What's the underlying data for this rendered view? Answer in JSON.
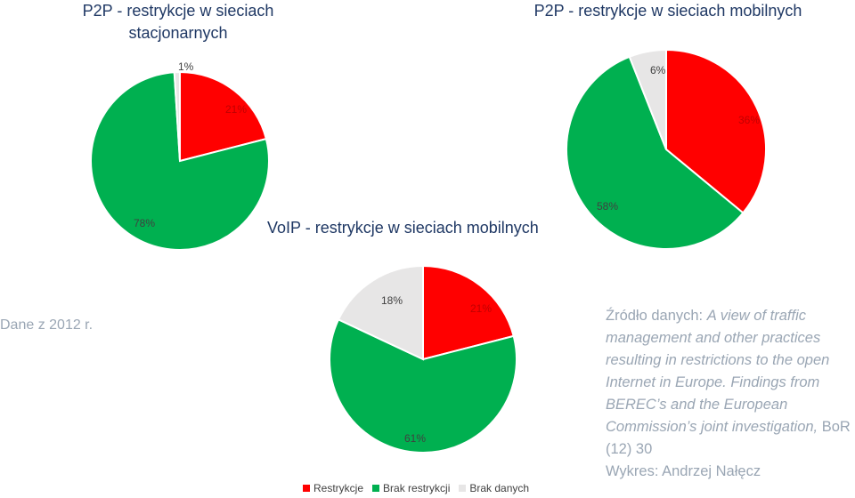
{
  "colors": {
    "restrykcje": "#ff0000",
    "brak_restrykcji": "#00b050",
    "brak_danych": "#e7e6e6"
  },
  "note": "Dane z 2012 r.",
  "source": {
    "prefix": "Źródło danych: ",
    "italic": "A view of traffic management and other practices resulting in restrictions to the open Internet in Europe. Findings from BEREC’s and the European Commission’s joint investigation,",
    "suffix": " BoR (12) 30",
    "author": "Wykres: Andrzej Nałęcz"
  },
  "chart_data": [
    {
      "type": "pie",
      "title": "P2P - restrykcje w sieciach stacjonarnych",
      "categories": [
        "Restrykcje",
        "Brak restrykcji",
        "Brak danych"
      ],
      "values": [
        21,
        78,
        1
      ],
      "labels": [
        "21%",
        "78%",
        "1%"
      ]
    },
    {
      "type": "pie",
      "title": "P2P - restrykcje w sieciach mobilnych",
      "categories": [
        "Restrykcje",
        "Brak restrykcji",
        "Brak danych"
      ],
      "values": [
        36,
        58,
        6
      ],
      "labels": [
        "36%",
        "58%",
        "6%"
      ]
    },
    {
      "type": "pie",
      "title": "VoIP - restrykcje w sieciach mobilnych",
      "categories": [
        "Restrykcje",
        "Brak restrykcji",
        "Brak danych"
      ],
      "values": [
        21,
        61,
        18
      ],
      "labels": [
        "21%",
        "61%",
        "18%"
      ],
      "legend": [
        "Restrykcje",
        "Brak restrykcji",
        "Brak danych"
      ]
    }
  ]
}
